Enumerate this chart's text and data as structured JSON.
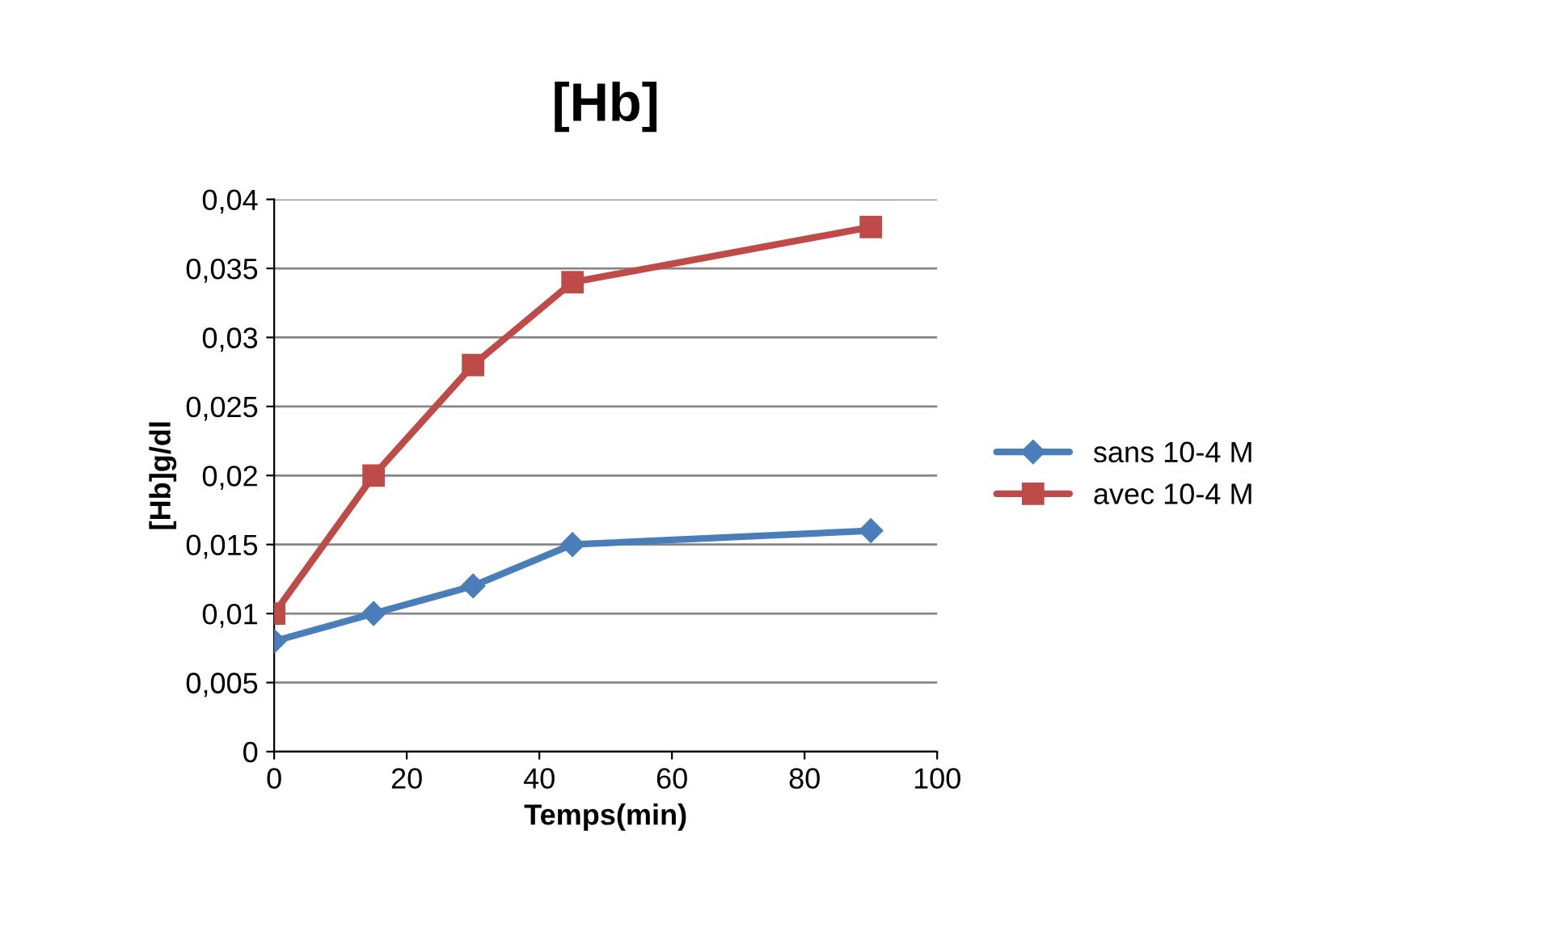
{
  "chart_data": {
    "type": "line",
    "title": "[Hb]",
    "xlabel": "Temps(min)",
    "ylabel": "[Hb]g/dl",
    "xlim": [
      0,
      100
    ],
    "xticks": [
      0,
      20,
      40,
      60,
      80,
      100
    ],
    "ylim": [
      0,
      0.04
    ],
    "yticks": [
      0,
      {
        "value": 0.005,
        "label": "0,005"
      },
      {
        "value": 0.01,
        "label": "0,01"
      },
      {
        "value": 0.015,
        "label": "0,015"
      },
      {
        "value": 0.02,
        "label": "0,02"
      },
      {
        "value": 0.025,
        "label": "0,025"
      },
      {
        "value": 0.03,
        "label": "0,03"
      },
      {
        "value": 0.035,
        "label": "0,035"
      },
      {
        "value": 0.04,
        "label": "0,04"
      }
    ],
    "grid": "y",
    "legend": "right",
    "line_style": "solid",
    "series": [
      {
        "name": "sans 10-4 M",
        "color": "#4a7ebb",
        "marker": "diamond",
        "x": [
          0,
          15,
          30,
          45,
          90
        ],
        "values": [
          0.008,
          0.01,
          0.012,
          0.015,
          0.016
        ]
      },
      {
        "name": "avec 10-4 M",
        "color": "#be4b48",
        "marker": "square",
        "x": [
          0,
          15,
          30,
          45,
          90
        ],
        "values": [
          0.01,
          0.02,
          0.028,
          0.034,
          0.038
        ]
      }
    ]
  }
}
